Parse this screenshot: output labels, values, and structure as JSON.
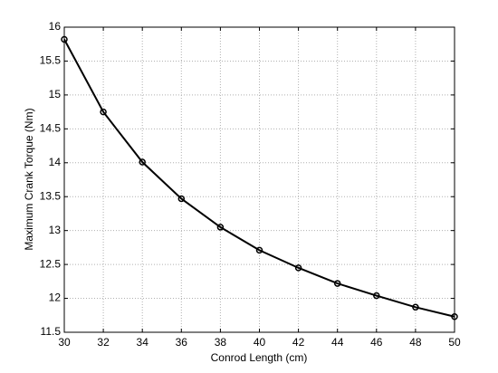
{
  "chart_data": {
    "type": "line",
    "xlabel": "Conrod Length (cm)",
    "ylabel": "Maximum Crank Torque (Nm)",
    "x": [
      30,
      32,
      34,
      36,
      38,
      40,
      42,
      44,
      46,
      48,
      50
    ],
    "values": [
      15.82,
      14.75,
      14.01,
      13.47,
      13.05,
      12.71,
      12.45,
      12.22,
      12.04,
      11.87,
      11.73
    ],
    "color": "#000000",
    "xlim": [
      30,
      50
    ],
    "xticks": [
      30,
      32,
      34,
      36,
      38,
      40,
      42,
      44,
      46,
      48,
      50
    ],
    "ylim": [
      11.5,
      16
    ],
    "yticks": [
      11.5,
      12,
      12.5,
      13,
      13.5,
      14,
      14.5,
      15,
      15.5,
      16
    ],
    "grid": true
  }
}
